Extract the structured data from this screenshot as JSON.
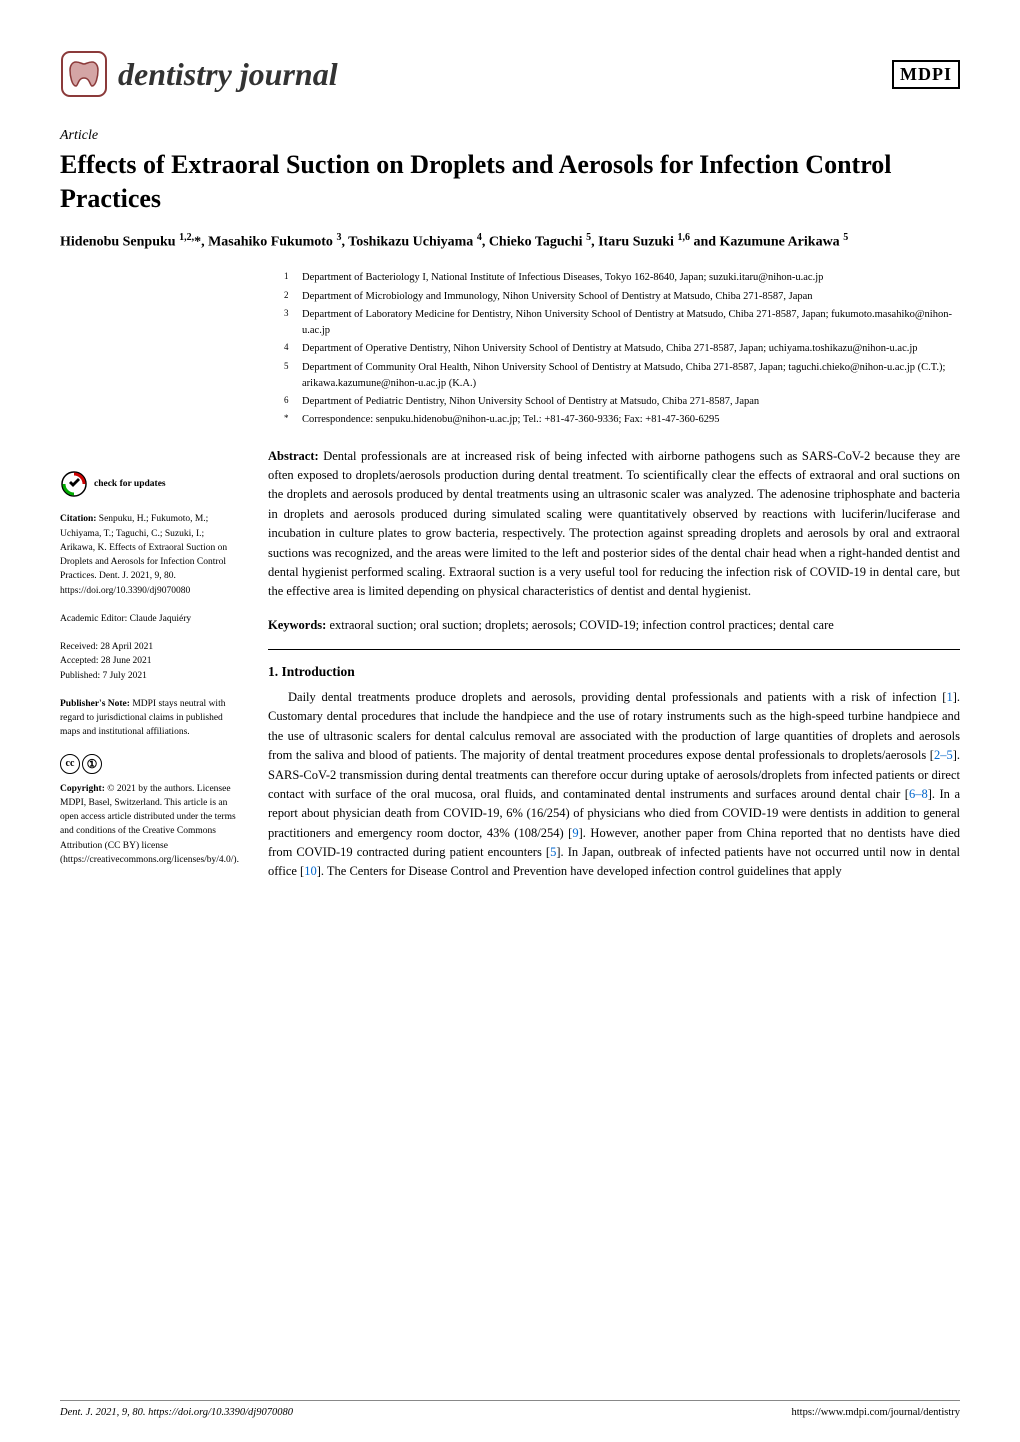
{
  "journal": {
    "name": "dentistry journal",
    "publisher_logo": "MDPI"
  },
  "article": {
    "type": "Article",
    "title": "Effects of Extraoral Suction on Droplets and Aerosols for Infection Control Practices",
    "authors_html": "Hidenobu Senpuku <sup>1,2,</sup>*, Masahiko Fukumoto <sup>3</sup>, Toshikazu Uchiyama <sup>4</sup>, Chieko Taguchi <sup>5</sup>, Itaru Suzuki <sup>1,6</sup> and Kazumune Arikawa <sup>5</sup>"
  },
  "affiliations": [
    {
      "num": "1",
      "text": "Department of Bacteriology I, National Institute of Infectious Diseases, Tokyo 162-8640, Japan; suzuki.itaru@nihon-u.ac.jp"
    },
    {
      "num": "2",
      "text": "Department of Microbiology and Immunology, Nihon University School of Dentistry at Matsudo, Chiba 271-8587, Japan"
    },
    {
      "num": "3",
      "text": "Department of Laboratory Medicine for Dentistry, Nihon University School of Dentistry at Matsudo, Chiba 271-8587, Japan; fukumoto.masahiko@nihon-u.ac.jp"
    },
    {
      "num": "4",
      "text": "Department of Operative Dentistry, Nihon University School of Dentistry at Matsudo, Chiba 271-8587, Japan; uchiyama.toshikazu@nihon-u.ac.jp"
    },
    {
      "num": "5",
      "text": "Department of Community Oral Health, Nihon University School of Dentistry at Matsudo, Chiba 271-8587, Japan; taguchi.chieko@nihon-u.ac.jp (C.T.); arikawa.kazumune@nihon-u.ac.jp (K.A.)"
    },
    {
      "num": "6",
      "text": "Department of Pediatric Dentistry, Nihon University School of Dentistry at Matsudo, Chiba 271-8587, Japan"
    },
    {
      "num": "*",
      "text": "Correspondence: senpuku.hidenobu@nihon-u.ac.jp; Tel.: +81-47-360-9336; Fax: +81-47-360-6295"
    }
  ],
  "abstract": {
    "label": "Abstract:",
    "text": "Dental professionals are at increased risk of being infected with airborne pathogens such as SARS-CoV-2 because they are often exposed to droplets/aerosols production during dental treatment. To scientifically clear the effects of extraoral and oral suctions on the droplets and aerosols produced by dental treatments using an ultrasonic scaler was analyzed. The adenosine triphosphate and bacteria in droplets and aerosols produced during simulated scaling were quantitatively observed by reactions with luciferin/luciferase and incubation in culture plates to grow bacteria, respectively. The protection against spreading droplets and aerosols by oral and extraoral suctions was recognized, and the areas were limited to the left and posterior sides of the dental chair head when a right-handed dentist and dental hygienist performed scaling. Extraoral suction is a very useful tool for reducing the infection risk of COVID-19 in dental care, but the effective area is limited depending on physical characteristics of dentist and dental hygienist."
  },
  "keywords": {
    "label": "Keywords:",
    "text": "extraoral suction; oral suction; droplets; aerosols; COVID-19; infection control practices; dental care"
  },
  "introduction": {
    "heading": "1. Introduction",
    "paragraph": "Daily dental treatments produce droplets and aerosols, providing dental professionals and patients with a risk of infection [1]. Customary dental procedures that include the handpiece and the use of rotary instruments such as the high-speed turbine handpiece and the use of ultrasonic scalers for dental calculus removal are associated with the production of large quantities of droplets and aerosols from the saliva and blood of patients. The majority of dental treatment procedures expose dental professionals to droplets/aerosols [2–5]. SARS-CoV-2 transmission during dental treatments can therefore occur during uptake of aerosols/droplets from infected patients or direct contact with surface of the oral mucosa, oral fluids, and contaminated dental instruments and surfaces around dental chair [6–8]. In a report about physician death from COVID-19, 6% (16/254) of physicians who died from COVID-19 were dentists in addition to general practitioners and emergency room doctor, 43% (108/254) [9]. However, another paper from China reported that no dentists have died from COVID-19 contracted during patient encounters [5]. In Japan, outbreak of infected patients have not occurred until now in dental office [10]. The Centers for Disease Control and Prevention have developed infection control guidelines that apply"
  },
  "sidebar": {
    "check_updates": "check for updates",
    "citation_label": "Citation:",
    "citation_text": "Senpuku, H.; Fukumoto, M.; Uchiyama, T.; Taguchi, C.; Suzuki, I.; Arikawa, K. Effects of Extraoral Suction on Droplets and Aerosols for Infection Control Practices. Dent. J. 2021, 9, 80. https://doi.org/10.3390/dj9070080",
    "editor_label": "Academic Editor:",
    "editor_name": "Claude Jaquiéry",
    "received": "Received: 28 April 2021",
    "accepted": "Accepted: 28 June 2021",
    "published": "Published: 7 July 2021",
    "note_label": "Publisher's Note:",
    "note_text": "MDPI stays neutral with regard to jurisdictional claims in published maps and institutional affiliations.",
    "copyright_label": "Copyright:",
    "copyright_text": "© 2021 by the authors. Licensee MDPI, Basel, Switzerland. This article is an open access article distributed under the terms and conditions of the Creative Commons Attribution (CC BY) license (https://creativecommons.org/licenses/by/4.0/)."
  },
  "footer": {
    "left": "Dent. J. 2021, 9, 80. https://doi.org/10.3390/dj9070080",
    "right": "https://www.mdpi.com/journal/dentistry"
  },
  "colors": {
    "link": "#0066cc",
    "text": "#000000",
    "bg": "#ffffff",
    "tooth_fill": "#d4a5a5",
    "tooth_stroke": "#8b3a3a"
  }
}
